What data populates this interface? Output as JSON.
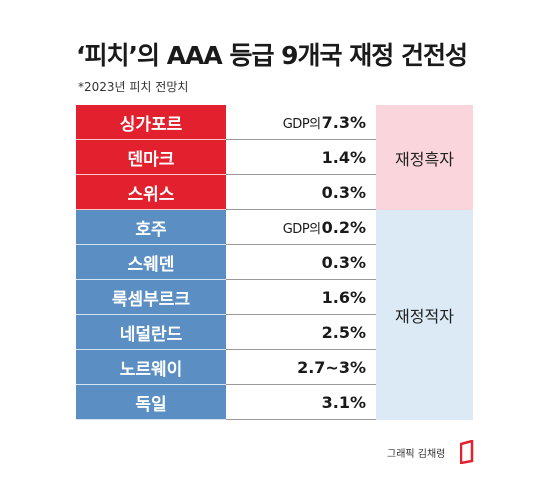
{
  "title": "‘피치’의 AAA 등급 9개국 재정 건전성",
  "subtitle": "*2023년 피치 전망치",
  "credit": "그래픽 김채령",
  "colors": {
    "surplus": "#e2202e",
    "surplus_bg": "#fad6dc",
    "deficit": "#5b8fc3",
    "deficit_bg": "#dceaf6"
  },
  "chart_data": {
    "type": "table",
    "title": "‘피치’의 AAA 등급 9개국 재정 건전성",
    "note": "*2023년 피치 전망치",
    "groups": [
      {
        "label": "재정흑자",
        "rows": [
          {
            "country": "싱가포르",
            "prefix": "GDP의",
            "value": "7.3%"
          },
          {
            "country": "덴마크",
            "prefix": "",
            "value": "1.4%"
          },
          {
            "country": "스위스",
            "prefix": "",
            "value": "0.3%"
          }
        ]
      },
      {
        "label": "재정적자",
        "rows": [
          {
            "country": "호주",
            "prefix": "GDP의",
            "value": "0.2%"
          },
          {
            "country": "스웨덴",
            "prefix": "",
            "value": "0.3%"
          },
          {
            "country": "룩셈부르크",
            "prefix": "",
            "value": "1.6%"
          },
          {
            "country": "네덜란드",
            "prefix": "",
            "value": "2.5%"
          },
          {
            "country": "노르웨이",
            "prefix": "",
            "value": "2.7~3%"
          },
          {
            "country": "독일",
            "prefix": "",
            "value": "3.1%"
          }
        ]
      }
    ]
  }
}
